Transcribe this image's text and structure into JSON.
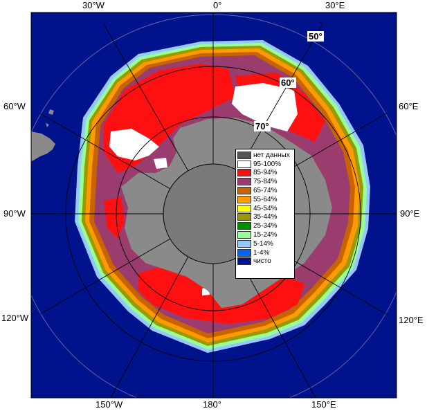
{
  "map": {
    "longitude_labels": {
      "top_30w": "30°W",
      "top_0": "0°",
      "top_30e": "30°E",
      "left_60w": "60°W",
      "right_60e": "60°E",
      "left_90w": "90°W",
      "right_90e": "90°E",
      "left_120w": "120°W",
      "right_120e": "120°E",
      "bottom_150w": "150°W",
      "bottom_180": "180°",
      "bottom_150e": "150°E"
    },
    "latitude_labels": {
      "lat_50": "50°",
      "lat_60": "60°",
      "lat_70": "70°"
    },
    "colors": {
      "ocean": "#00138c",
      "land": "#8a8a8a",
      "no_data": "#555555",
      "ice_95_100": "#ffffff",
      "ice_85_94": "#ff1010",
      "ice_75_84": "#9a3c6e",
      "ice_65_74": "#c86400",
      "ice_55_64": "#ff9a00",
      "ice_45_54": "#ffff00",
      "ice_35_44": "#9a9a00",
      "ice_25_34": "#008c00",
      "ice_15_24": "#96ff96",
      "ice_5_14": "#96c8ff",
      "ice_1_4": "#0064ff",
      "clear": "#00138c"
    }
  },
  "legend": {
    "items": [
      {
        "label": "нет данных",
        "color": "#555555"
      },
      {
        "label": "95-100%",
        "color": "#ffffff"
      },
      {
        "label": "85-94%",
        "color": "#ff1010"
      },
      {
        "label": "75-84%",
        "color": "#9a3c6e"
      },
      {
        "label": "65-74%",
        "color": "#c86400"
      },
      {
        "label": "55-64%",
        "color": "#ff9a00"
      },
      {
        "label": "45-54%",
        "color": "#ffff00"
      },
      {
        "label": "35-44%",
        "color": "#9a9a00"
      },
      {
        "label": "25-34%",
        "color": "#008c00"
      },
      {
        "label": "15-24%",
        "color": "#96ff96"
      },
      {
        "label": "5-14%",
        "color": "#96c8ff"
      },
      {
        "label": "1-4%",
        "color": "#0064ff"
      },
      {
        "label": "чисто",
        "color": "#00138c"
      }
    ]
  }
}
